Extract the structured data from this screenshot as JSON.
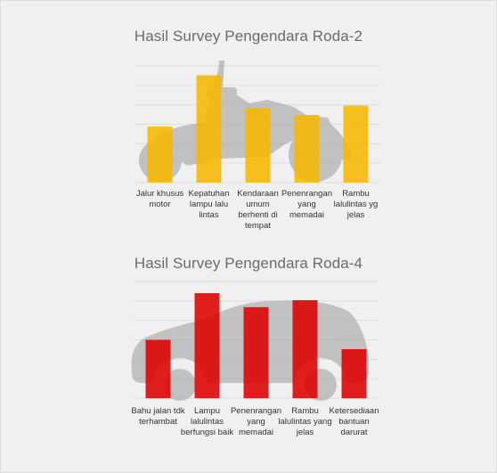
{
  "chart_data": [
    {
      "type": "bar",
      "title": "Hasil Survey Pengendara Roda-2",
      "categories": [
        "Jalur khusus motor",
        "Kepatuhan lampu lalu lintas",
        "Kendaraan umum berhenti di tempat",
        "Penenrangan yang memadai",
        "Rambu lalulintas yg jelas"
      ],
      "values": [
        2.4,
        4.6,
        3.2,
        2.9,
        3.3
      ],
      "ylim": [
        0,
        5
      ],
      "grid": true,
      "color": "#f5b800",
      "background_icon": "motorcycle-icon"
    },
    {
      "type": "bar",
      "title": "Hasil Survey Pengendara Roda-4",
      "categories": [
        "Bahu jalan tdk terhambat",
        "Lampu lalulintas berfungsi baik",
        "Penenrangan yang memadai",
        "Rambu lalulintas yang jelas",
        "Ketersediaan bantuan darurat"
      ],
      "values": [
        2.5,
        4.5,
        3.9,
        4.2,
        2.1
      ],
      "ylim": [
        0,
        5
      ],
      "grid": true,
      "color": "#dd0000",
      "background_icon": "car-icon"
    }
  ]
}
